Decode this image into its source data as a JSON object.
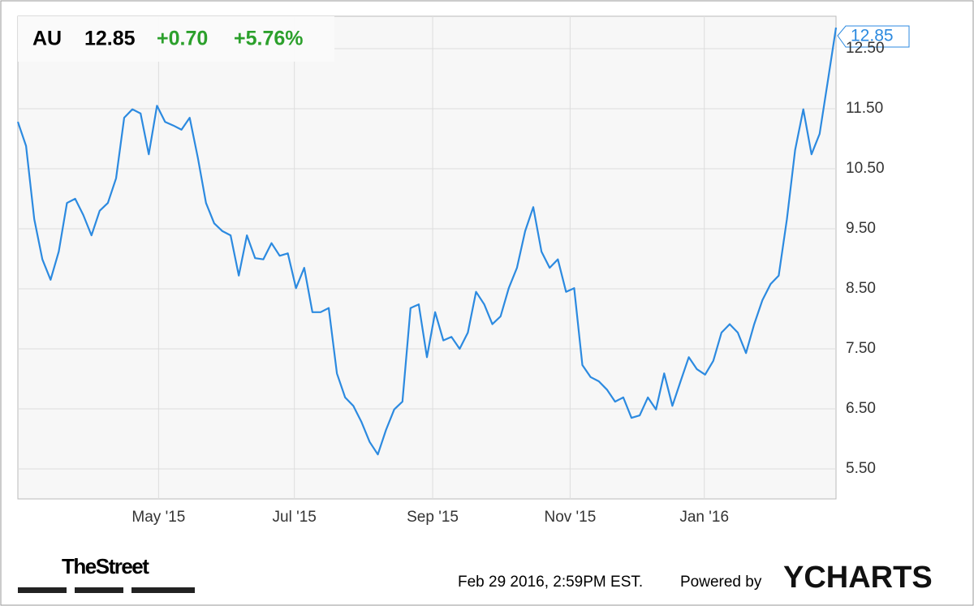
{
  "chart_data": {
    "type": "line",
    "header": {
      "ticker": "AU",
      "price": "12.85",
      "change": "+0.70",
      "change_pct": "+5.76%"
    },
    "last_label": "12.85",
    "series": [
      {
        "name": "AU",
        "color": "#2c8ae0",
        "values": [
          11.28,
          10.88,
          9.66,
          8.99,
          8.65,
          9.12,
          9.93,
          10.0,
          9.73,
          9.39,
          9.8,
          9.93,
          10.34,
          11.35,
          11.49,
          11.42,
          10.74,
          11.55,
          11.28,
          11.22,
          11.15,
          11.35,
          10.68,
          9.93,
          9.59,
          9.46,
          9.39,
          8.72,
          9.39,
          9.01,
          8.99,
          9.26,
          9.05,
          9.09,
          8.51,
          8.85,
          8.11,
          8.11,
          8.18,
          7.09,
          6.69,
          6.55,
          6.28,
          5.95,
          5.74,
          6.15,
          6.49,
          6.62,
          8.18,
          8.24,
          7.36,
          8.11,
          7.64,
          7.7,
          7.5,
          7.77,
          8.45,
          8.24,
          7.91,
          8.04,
          8.51,
          8.85,
          9.46,
          9.86,
          9.12,
          8.85,
          8.99,
          8.45,
          8.51,
          7.23,
          7.03,
          6.96,
          6.82,
          6.62,
          6.69,
          6.35,
          6.39,
          6.69,
          6.49,
          7.09,
          6.55,
          6.96,
          7.36,
          7.16,
          7.07,
          7.3,
          7.77,
          7.91,
          7.77,
          7.43,
          7.91,
          8.31,
          8.58,
          8.72,
          9.66,
          10.81,
          11.49,
          10.74,
          11.08,
          11.96,
          12.85
        ]
      }
    ],
    "xlim": [
      0,
      100
    ],
    "xticks": [
      {
        "value": 17.2,
        "label": "May '15"
      },
      {
        "value": 33.8,
        "label": "Jul '15"
      },
      {
        "value": 50.7,
        "label": "Sep '15"
      },
      {
        "value": 67.5,
        "label": "Nov '15"
      },
      {
        "value": 83.9,
        "label": "Jan '16"
      }
    ],
    "ylim": [
      5.0,
      13.04
    ],
    "yticks": [
      {
        "value": 5.5,
        "label": "5.50"
      },
      {
        "value": 6.5,
        "label": "6.50"
      },
      {
        "value": 7.5,
        "label": "7.50"
      },
      {
        "value": 8.5,
        "label": "8.50"
      },
      {
        "value": 9.5,
        "label": "9.50"
      },
      {
        "value": 10.5,
        "label": "10.50"
      },
      {
        "value": 11.5,
        "label": "11.50"
      },
      {
        "value": 12.5,
        "label": "12.50"
      }
    ],
    "grid": true,
    "footer": {
      "source": "TheStreet",
      "timestamp": "Feb 29 2016, 2:59PM EST.",
      "powered": "Powered by",
      "brand": "YCHARTS"
    }
  }
}
